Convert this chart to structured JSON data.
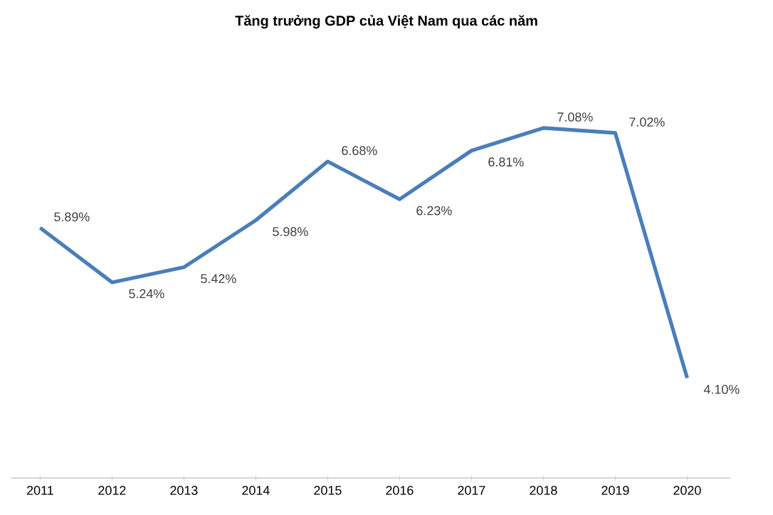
{
  "chart_data": {
    "type": "line",
    "title": "Tăng trưởng GDP của Việt Nam qua các năm",
    "categories": [
      "2011",
      "2012",
      "2013",
      "2014",
      "2015",
      "2016",
      "2017",
      "2018",
      "2019",
      "2020"
    ],
    "values": [
      5.89,
      5.24,
      5.42,
      5.98,
      6.68,
      6.23,
      6.81,
      7.08,
      7.02,
      4.1
    ],
    "value_labels": [
      "5.89%",
      "5.24%",
      "5.42%",
      "5.98%",
      "6.68%",
      "6.23%",
      "6.81%",
      "7.08%",
      "7.02%",
      "4.10%"
    ],
    "color": "#4a7ebb"
  }
}
